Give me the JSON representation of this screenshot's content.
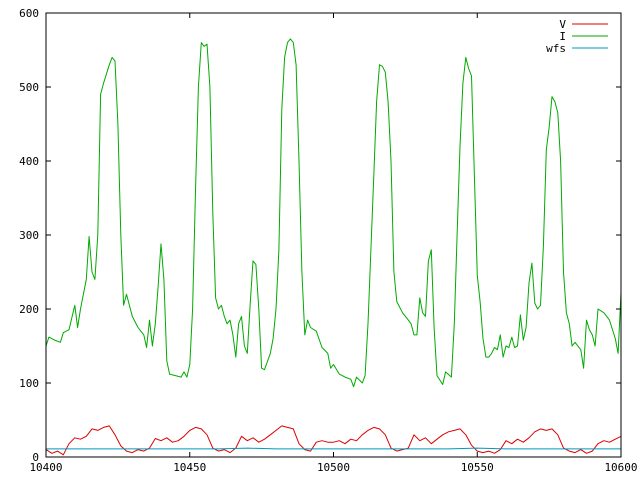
{
  "chart_data": {
    "type": "line",
    "title": "",
    "xlabel": "",
    "ylabel": "",
    "xlim": [
      10400,
      10600
    ],
    "ylim": [
      0,
      600
    ],
    "grid": false,
    "legend_position": "top-right",
    "x_ticks": [
      10400,
      10450,
      10500,
      10550,
      10600
    ],
    "y_ticks": [
      0,
      100,
      200,
      300,
      400,
      500,
      600
    ],
    "x_tick_labels": [
      "10400",
      "10450",
      "10500",
      "10550",
      "10600"
    ],
    "y_tick_labels": [
      "0",
      "100",
      "200",
      "300",
      "400",
      "500",
      "600"
    ],
    "series": [
      {
        "name": "V",
        "color": "#dd0000",
        "points": [
          [
            10400,
            10
          ],
          [
            10402,
            5
          ],
          [
            10404,
            8
          ],
          [
            10406,
            3
          ],
          [
            10408,
            18
          ],
          [
            10410,
            26
          ],
          [
            10412,
            24
          ],
          [
            10414,
            28
          ],
          [
            10416,
            38
          ],
          [
            10418,
            36
          ],
          [
            10420,
            40
          ],
          [
            10422,
            42
          ],
          [
            10424,
            30
          ],
          [
            10426,
            15
          ],
          [
            10428,
            8
          ],
          [
            10430,
            6
          ],
          [
            10432,
            10
          ],
          [
            10434,
            8
          ],
          [
            10436,
            12
          ],
          [
            10438,
            25
          ],
          [
            10440,
            22
          ],
          [
            10442,
            26
          ],
          [
            10444,
            20
          ],
          [
            10446,
            22
          ],
          [
            10448,
            28
          ],
          [
            10450,
            36
          ],
          [
            10452,
            40
          ],
          [
            10454,
            38
          ],
          [
            10456,
            30
          ],
          [
            10458,
            12
          ],
          [
            10460,
            8
          ],
          [
            10462,
            10
          ],
          [
            10464,
            6
          ],
          [
            10466,
            12
          ],
          [
            10468,
            28
          ],
          [
            10470,
            22
          ],
          [
            10472,
            26
          ],
          [
            10474,
            20
          ],
          [
            10476,
            24
          ],
          [
            10478,
            30
          ],
          [
            10480,
            36
          ],
          [
            10482,
            42
          ],
          [
            10484,
            40
          ],
          [
            10486,
            38
          ],
          [
            10488,
            18
          ],
          [
            10490,
            10
          ],
          [
            10492,
            8
          ],
          [
            10494,
            20
          ],
          [
            10496,
            22
          ],
          [
            10498,
            20
          ],
          [
            10500,
            20
          ],
          [
            10502,
            22
          ],
          [
            10504,
            18
          ],
          [
            10506,
            24
          ],
          [
            10508,
            22
          ],
          [
            10510,
            30
          ],
          [
            10512,
            36
          ],
          [
            10514,
            40
          ],
          [
            10516,
            38
          ],
          [
            10518,
            30
          ],
          [
            10520,
            12
          ],
          [
            10522,
            8
          ],
          [
            10524,
            10
          ],
          [
            10526,
            12
          ],
          [
            10528,
            30
          ],
          [
            10530,
            22
          ],
          [
            10532,
            26
          ],
          [
            10534,
            18
          ],
          [
            10536,
            24
          ],
          [
            10538,
            30
          ],
          [
            10540,
            34
          ],
          [
            10542,
            36
          ],
          [
            10544,
            38
          ],
          [
            10546,
            30
          ],
          [
            10548,
            16
          ],
          [
            10550,
            8
          ],
          [
            10552,
            6
          ],
          [
            10554,
            8
          ],
          [
            10556,
            5
          ],
          [
            10558,
            10
          ],
          [
            10560,
            22
          ],
          [
            10562,
            18
          ],
          [
            10564,
            24
          ],
          [
            10566,
            20
          ],
          [
            10568,
            26
          ],
          [
            10570,
            34
          ],
          [
            10572,
            38
          ],
          [
            10574,
            36
          ],
          [
            10576,
            38
          ],
          [
            10578,
            30
          ],
          [
            10580,
            12
          ],
          [
            10582,
            8
          ],
          [
            10584,
            6
          ],
          [
            10586,
            10
          ],
          [
            10588,
            5
          ],
          [
            10590,
            8
          ],
          [
            10592,
            18
          ],
          [
            10594,
            22
          ],
          [
            10596,
            20
          ],
          [
            10598,
            24
          ],
          [
            10600,
            28
          ]
        ]
      },
      {
        "name": "I",
        "color": "#00aa00",
        "points": [
          [
            10400,
            150
          ],
          [
            10401,
            162
          ],
          [
            10403,
            158
          ],
          [
            10405,
            155
          ],
          [
            10406,
            168
          ],
          [
            10408,
            172
          ],
          [
            10410,
            205
          ],
          [
            10411,
            175
          ],
          [
            10412,
            200
          ],
          [
            10414,
            240
          ],
          [
            10415,
            298
          ],
          [
            10416,
            250
          ],
          [
            10417,
            240
          ],
          [
            10418,
            300
          ],
          [
            10419,
            490
          ],
          [
            10420,
            505
          ],
          [
            10422,
            530
          ],
          [
            10423,
            540
          ],
          [
            10424,
            535
          ],
          [
            10425,
            450
          ],
          [
            10426,
            300
          ],
          [
            10427,
            205
          ],
          [
            10428,
            220
          ],
          [
            10430,
            190
          ],
          [
            10432,
            175
          ],
          [
            10434,
            165
          ],
          [
            10435,
            148
          ],
          [
            10436,
            185
          ],
          [
            10437,
            150
          ],
          [
            10438,
            180
          ],
          [
            10439,
            230
          ],
          [
            10440,
            288
          ],
          [
            10441,
            240
          ],
          [
            10442,
            130
          ],
          [
            10443,
            112
          ],
          [
            10445,
            110
          ],
          [
            10447,
            108
          ],
          [
            10448,
            115
          ],
          [
            10449,
            108
          ],
          [
            10450,
            125
          ],
          [
            10451,
            200
          ],
          [
            10452,
            360
          ],
          [
            10453,
            500
          ],
          [
            10454,
            560
          ],
          [
            10455,
            555
          ],
          [
            10456,
            558
          ],
          [
            10457,
            500
          ],
          [
            10458,
            330
          ],
          [
            10459,
            215
          ],
          [
            10460,
            200
          ],
          [
            10461,
            205
          ],
          [
            10462,
            190
          ],
          [
            10463,
            180
          ],
          [
            10464,
            185
          ],
          [
            10465,
            165
          ],
          [
            10466,
            135
          ],
          [
            10467,
            180
          ],
          [
            10468,
            190
          ],
          [
            10469,
            150
          ],
          [
            10470,
            140
          ],
          [
            10471,
            205
          ],
          [
            10472,
            265
          ],
          [
            10473,
            260
          ],
          [
            10474,
            200
          ],
          [
            10475,
            120
          ],
          [
            10476,
            118
          ],
          [
            10478,
            140
          ],
          [
            10479,
            160
          ],
          [
            10480,
            200
          ],
          [
            10481,
            280
          ],
          [
            10482,
            470
          ],
          [
            10483,
            540
          ],
          [
            10484,
            560
          ],
          [
            10485,
            565
          ],
          [
            10486,
            560
          ],
          [
            10487,
            530
          ],
          [
            10488,
            400
          ],
          [
            10489,
            250
          ],
          [
            10490,
            165
          ],
          [
            10491,
            185
          ],
          [
            10492,
            175
          ],
          [
            10494,
            170
          ],
          [
            10496,
            148
          ],
          [
            10498,
            140
          ],
          [
            10499,
            120
          ],
          [
            10500,
            125
          ],
          [
            10502,
            112
          ],
          [
            10504,
            108
          ],
          [
            10506,
            105
          ],
          [
            10507,
            95
          ],
          [
            10508,
            108
          ],
          [
            10510,
            100
          ],
          [
            10511,
            110
          ],
          [
            10512,
            180
          ],
          [
            10514,
            380
          ],
          [
            10515,
            480
          ],
          [
            10516,
            530
          ],
          [
            10517,
            528
          ],
          [
            10518,
            520
          ],
          [
            10519,
            480
          ],
          [
            10520,
            400
          ],
          [
            10521,
            250
          ],
          [
            10522,
            210
          ],
          [
            10524,
            195
          ],
          [
            10526,
            185
          ],
          [
            10527,
            180
          ],
          [
            10528,
            165
          ],
          [
            10529,
            165
          ],
          [
            10530,
            215
          ],
          [
            10531,
            195
          ],
          [
            10532,
            190
          ],
          [
            10533,
            265
          ],
          [
            10534,
            280
          ],
          [
            10535,
            175
          ],
          [
            10536,
            110
          ],
          [
            10538,
            98
          ],
          [
            10539,
            115
          ],
          [
            10541,
            108
          ],
          [
            10542,
            180
          ],
          [
            10543,
            300
          ],
          [
            10544,
            420
          ],
          [
            10545,
            505
          ],
          [
            10546,
            540
          ],
          [
            10547,
            525
          ],
          [
            10548,
            515
          ],
          [
            10549,
            380
          ],
          [
            10550,
            245
          ],
          [
            10551,
            210
          ],
          [
            10552,
            160
          ],
          [
            10553,
            135
          ],
          [
            10554,
            135
          ],
          [
            10555,
            140
          ],
          [
            10556,
            148
          ],
          [
            10557,
            145
          ],
          [
            10558,
            165
          ],
          [
            10559,
            135
          ],
          [
            10560,
            150
          ],
          [
            10561,
            148
          ],
          [
            10562,
            162
          ],
          [
            10563,
            148
          ],
          [
            10564,
            150
          ],
          [
            10565,
            192
          ],
          [
            10566,
            158
          ],
          [
            10567,
            175
          ],
          [
            10568,
            235
          ],
          [
            10569,
            262
          ],
          [
            10570,
            208
          ],
          [
            10571,
            200
          ],
          [
            10572,
            205
          ],
          [
            10573,
            285
          ],
          [
            10574,
            415
          ],
          [
            10575,
            445
          ],
          [
            10576,
            487
          ],
          [
            10577,
            480
          ],
          [
            10578,
            465
          ],
          [
            10579,
            400
          ],
          [
            10580,
            250
          ],
          [
            10581,
            195
          ],
          [
            10582,
            180
          ],
          [
            10583,
            150
          ],
          [
            10584,
            155
          ],
          [
            10586,
            145
          ],
          [
            10587,
            120
          ],
          [
            10588,
            185
          ],
          [
            10589,
            172
          ],
          [
            10590,
            165
          ],
          [
            10591,
            150
          ],
          [
            10592,
            200
          ],
          [
            10594,
            195
          ],
          [
            10596,
            185
          ],
          [
            10598,
            160
          ],
          [
            10599,
            140
          ],
          [
            10600,
            222
          ]
        ]
      },
      {
        "name": "wfs",
        "color": "#0099bb",
        "points": [
          [
            10400,
            11
          ],
          [
            10420,
            11
          ],
          [
            10440,
            11
          ],
          [
            10460,
            11
          ],
          [
            10470,
            12
          ],
          [
            10480,
            11
          ],
          [
            10490,
            11
          ],
          [
            10500,
            11
          ],
          [
            10510,
            11
          ],
          [
            10520,
            11
          ],
          [
            10530,
            11
          ],
          [
            10540,
            11
          ],
          [
            10550,
            12
          ],
          [
            10560,
            11
          ],
          [
            10570,
            11
          ],
          [
            10580,
            11
          ],
          [
            10590,
            11
          ],
          [
            10600,
            11
          ]
        ]
      }
    ]
  }
}
